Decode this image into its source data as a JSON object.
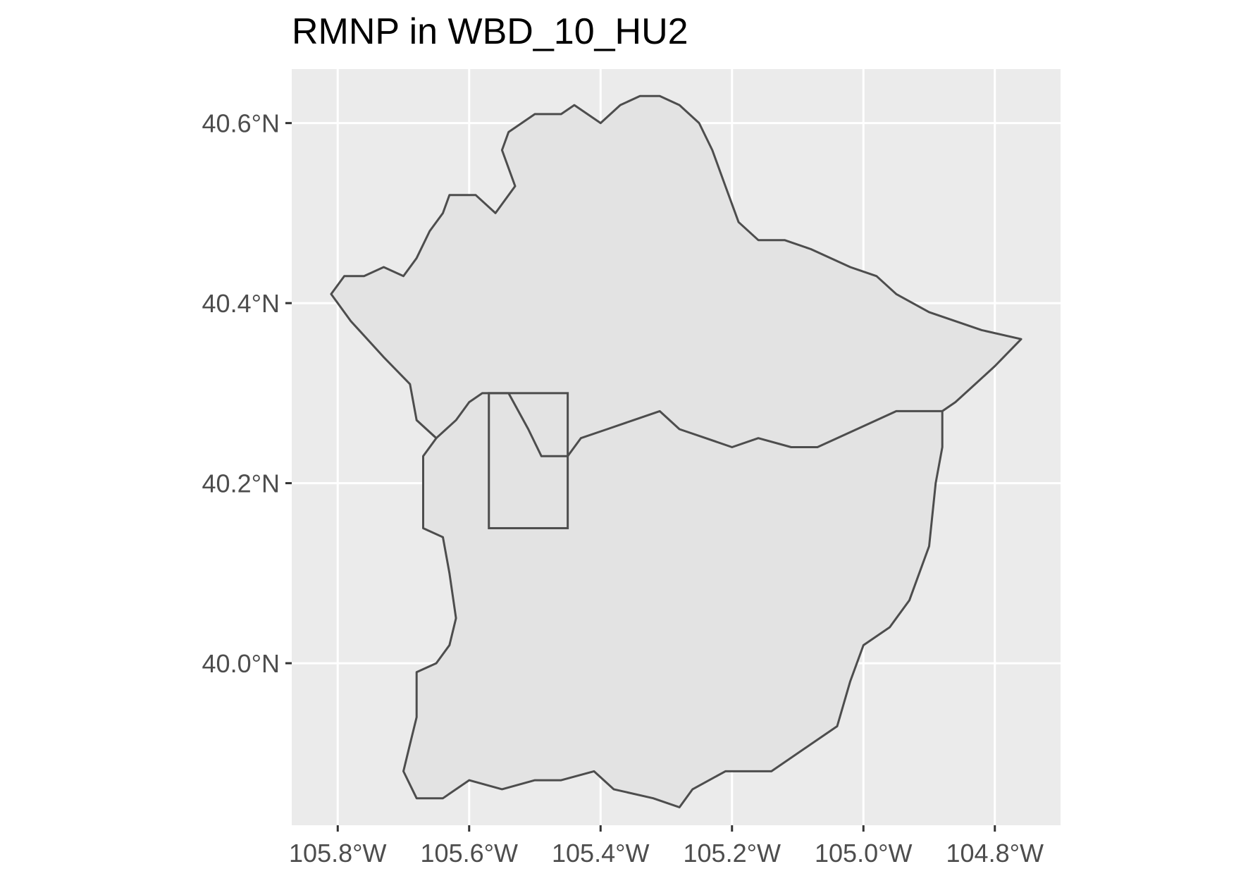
{
  "chart_data": {
    "type": "map",
    "title": "RMNP in WBD_10_HU2",
    "xlabel": "",
    "ylabel": "",
    "xlim": [
      -105.87,
      -104.7
    ],
    "ylim": [
      39.82,
      40.66
    ],
    "x_ticks": [
      {
        "value": -105.8,
        "label": "105.8°W"
      },
      {
        "value": -105.6,
        "label": "105.6°W"
      },
      {
        "value": -105.4,
        "label": "105.4°W"
      },
      {
        "value": -105.2,
        "label": "105.2°W"
      },
      {
        "value": -105.0,
        "label": "105.0°W"
      },
      {
        "value": -104.8,
        "label": "104.8°W"
      }
    ],
    "y_ticks": [
      {
        "value": 40.0,
        "label": "40.0°N"
      },
      {
        "value": 40.2,
        "label": "40.2°N"
      },
      {
        "value": 40.4,
        "label": "40.4°N"
      },
      {
        "value": 40.6,
        "label": "40.6°N"
      }
    ],
    "grid": true,
    "colors": {
      "panel": "#ebebeb",
      "fill": "#e3e3e3",
      "outline": "#4d4d4d"
    },
    "watershed_boundary": [
      [
        -105.81,
        40.41
      ],
      [
        -105.79,
        40.43
      ],
      [
        -105.76,
        40.43
      ],
      [
        -105.73,
        40.44
      ],
      [
        -105.7,
        40.43
      ],
      [
        -105.68,
        40.45
      ],
      [
        -105.66,
        40.48
      ],
      [
        -105.64,
        40.5
      ],
      [
        -105.63,
        40.52
      ],
      [
        -105.59,
        40.52
      ],
      [
        -105.56,
        40.5
      ],
      [
        -105.53,
        40.53
      ],
      [
        -105.55,
        40.57
      ],
      [
        -105.54,
        40.59
      ],
      [
        -105.5,
        40.61
      ],
      [
        -105.46,
        40.61
      ],
      [
        -105.44,
        40.62
      ],
      [
        -105.4,
        40.6
      ],
      [
        -105.37,
        40.62
      ],
      [
        -105.34,
        40.63
      ],
      [
        -105.31,
        40.63
      ],
      [
        -105.28,
        40.62
      ],
      [
        -105.25,
        40.6
      ],
      [
        -105.23,
        40.57
      ],
      [
        -105.21,
        40.53
      ],
      [
        -105.19,
        40.49
      ],
      [
        -105.16,
        40.47
      ],
      [
        -105.12,
        40.47
      ],
      [
        -105.08,
        40.46
      ],
      [
        -105.02,
        40.44
      ],
      [
        -104.98,
        40.43
      ],
      [
        -104.95,
        40.41
      ],
      [
        -104.9,
        40.39
      ],
      [
        -104.86,
        40.38
      ],
      [
        -104.82,
        40.37
      ],
      [
        -104.76,
        40.36
      ],
      [
        -104.8,
        40.33
      ],
      [
        -104.83,
        40.31
      ],
      [
        -104.86,
        40.29
      ],
      [
        -104.88,
        40.28
      ],
      [
        -104.88,
        40.24
      ],
      [
        -104.89,
        40.2
      ],
      [
        -104.9,
        40.13
      ],
      [
        -104.93,
        40.07
      ],
      [
        -104.96,
        40.04
      ],
      [
        -105.0,
        40.02
      ],
      [
        -105.02,
        39.98
      ],
      [
        -105.04,
        39.93
      ],
      [
        -105.08,
        39.91
      ],
      [
        -105.14,
        39.88
      ],
      [
        -105.21,
        39.88
      ],
      [
        -105.26,
        39.86
      ],
      [
        -105.28,
        39.84
      ],
      [
        -105.32,
        39.85
      ],
      [
        -105.38,
        39.86
      ],
      [
        -105.41,
        39.88
      ],
      [
        -105.46,
        39.87
      ],
      [
        -105.5,
        39.87
      ],
      [
        -105.55,
        39.86
      ],
      [
        -105.6,
        39.87
      ],
      [
        -105.64,
        39.85
      ],
      [
        -105.68,
        39.85
      ],
      [
        -105.7,
        39.88
      ],
      [
        -105.69,
        39.91
      ],
      [
        -105.68,
        39.94
      ],
      [
        -105.68,
        39.99
      ],
      [
        -105.65,
        40.0
      ],
      [
        -105.63,
        40.02
      ],
      [
        -105.62,
        40.05
      ],
      [
        -105.63,
        40.1
      ],
      [
        -105.64,
        40.14
      ],
      [
        -105.67,
        40.15
      ],
      [
        -105.67,
        40.19
      ],
      [
        -105.67,
        40.23
      ],
      [
        -105.65,
        40.25
      ],
      [
        -105.68,
        40.27
      ],
      [
        -105.69,
        40.31
      ],
      [
        -105.73,
        40.34
      ],
      [
        -105.78,
        40.38
      ],
      [
        -105.81,
        40.41
      ]
    ],
    "divide_line": [
      [
        -105.68,
        40.27
      ],
      [
        -105.65,
        40.25
      ],
      [
        -105.62,
        40.27
      ],
      [
        -105.6,
        40.29
      ],
      [
        -105.58,
        40.3
      ],
      [
        -105.54,
        40.3
      ],
      [
        -105.51,
        40.26
      ],
      [
        -105.49,
        40.23
      ],
      [
        -105.45,
        40.23
      ],
      [
        -105.43,
        40.25
      ],
      [
        -105.39,
        40.26
      ],
      [
        -105.35,
        40.27
      ],
      [
        -105.31,
        40.28
      ],
      [
        -105.28,
        40.26
      ],
      [
        -105.24,
        40.25
      ],
      [
        -105.2,
        40.24
      ],
      [
        -105.16,
        40.25
      ],
      [
        -105.11,
        40.24
      ],
      [
        -105.07,
        40.24
      ],
      [
        -105.01,
        40.26
      ],
      [
        -104.95,
        40.28
      ],
      [
        -104.88,
        40.28
      ]
    ],
    "rmnp_box": {
      "xmin": -105.57,
      "xmax": -105.45,
      "ymin": 40.15,
      "ymax": 40.3
    }
  }
}
